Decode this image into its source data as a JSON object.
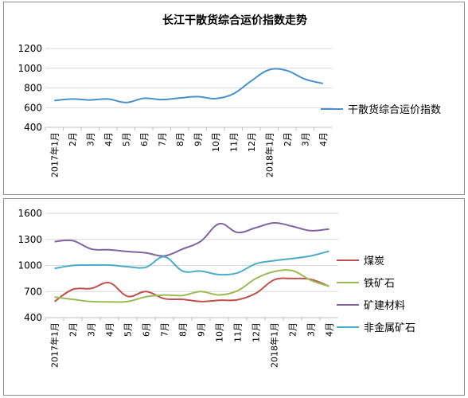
{
  "chart_data": [
    {
      "type": "line",
      "title": "长江干散货综合运价指数走势",
      "xlabel": "",
      "ylabel": "",
      "categories": [
        "2017年1月",
        "2月",
        "3月",
        "4月",
        "5月",
        "6月",
        "7月",
        "8月",
        "9月",
        "10月",
        "11月",
        "12月",
        "2018年1月",
        "2月",
        "3月",
        "4月"
      ],
      "ylim": [
        400,
        1200
      ],
      "yticks": [
        "400",
        "600",
        "800",
        "1000",
        "1200"
      ],
      "grid": true,
      "legend_position": "right",
      "series": [
        {
          "name": "干散货综合运价指数",
          "color": "#4a90c8",
          "values": [
            672,
            688,
            678,
            688,
            652,
            695,
            682,
            698,
            712,
            692,
            740,
            872,
            985,
            975,
            890,
            845
          ]
        }
      ]
    },
    {
      "type": "line",
      "title": "",
      "xlabel": "",
      "ylabel": "",
      "categories": [
        "2017年1月",
        "2月",
        "3月",
        "4月",
        "5月",
        "6月",
        "7月",
        "8月",
        "9月",
        "10月",
        "11月",
        "12月",
        "2018年1月",
        "2月",
        "3月",
        "4月"
      ],
      "ylim": [
        400,
        1600
      ],
      "yticks": [
        "400",
        "700",
        "1000",
        "1300",
        "1600"
      ],
      "grid": true,
      "legend_position": "right",
      "series": [
        {
          "name": "煤炭",
          "color": "#c0504d",
          "values": [
            585,
            725,
            735,
            800,
            645,
            700,
            618,
            610,
            585,
            600,
            605,
            680,
            835,
            850,
            840,
            760
          ]
        },
        {
          "name": "铁矿石",
          "color": "#9bbb59",
          "values": [
            635,
            610,
            585,
            580,
            585,
            640,
            660,
            655,
            700,
            660,
            710,
            850,
            930,
            940,
            830,
            760
          ]
        },
        {
          "name": "矿建材料",
          "color": "#8064a2",
          "values": [
            1275,
            1285,
            1190,
            1180,
            1160,
            1145,
            1110,
            1190,
            1280,
            1480,
            1380,
            1435,
            1490,
            1450,
            1400,
            1420
          ]
        },
        {
          "name": "非金属矿石",
          "color": "#4bacc6",
          "values": [
            965,
            1000,
            1005,
            1005,
            985,
            980,
            1100,
            935,
            935,
            895,
            915,
            1020,
            1055,
            1080,
            1110,
            1165
          ]
        }
      ]
    }
  ]
}
